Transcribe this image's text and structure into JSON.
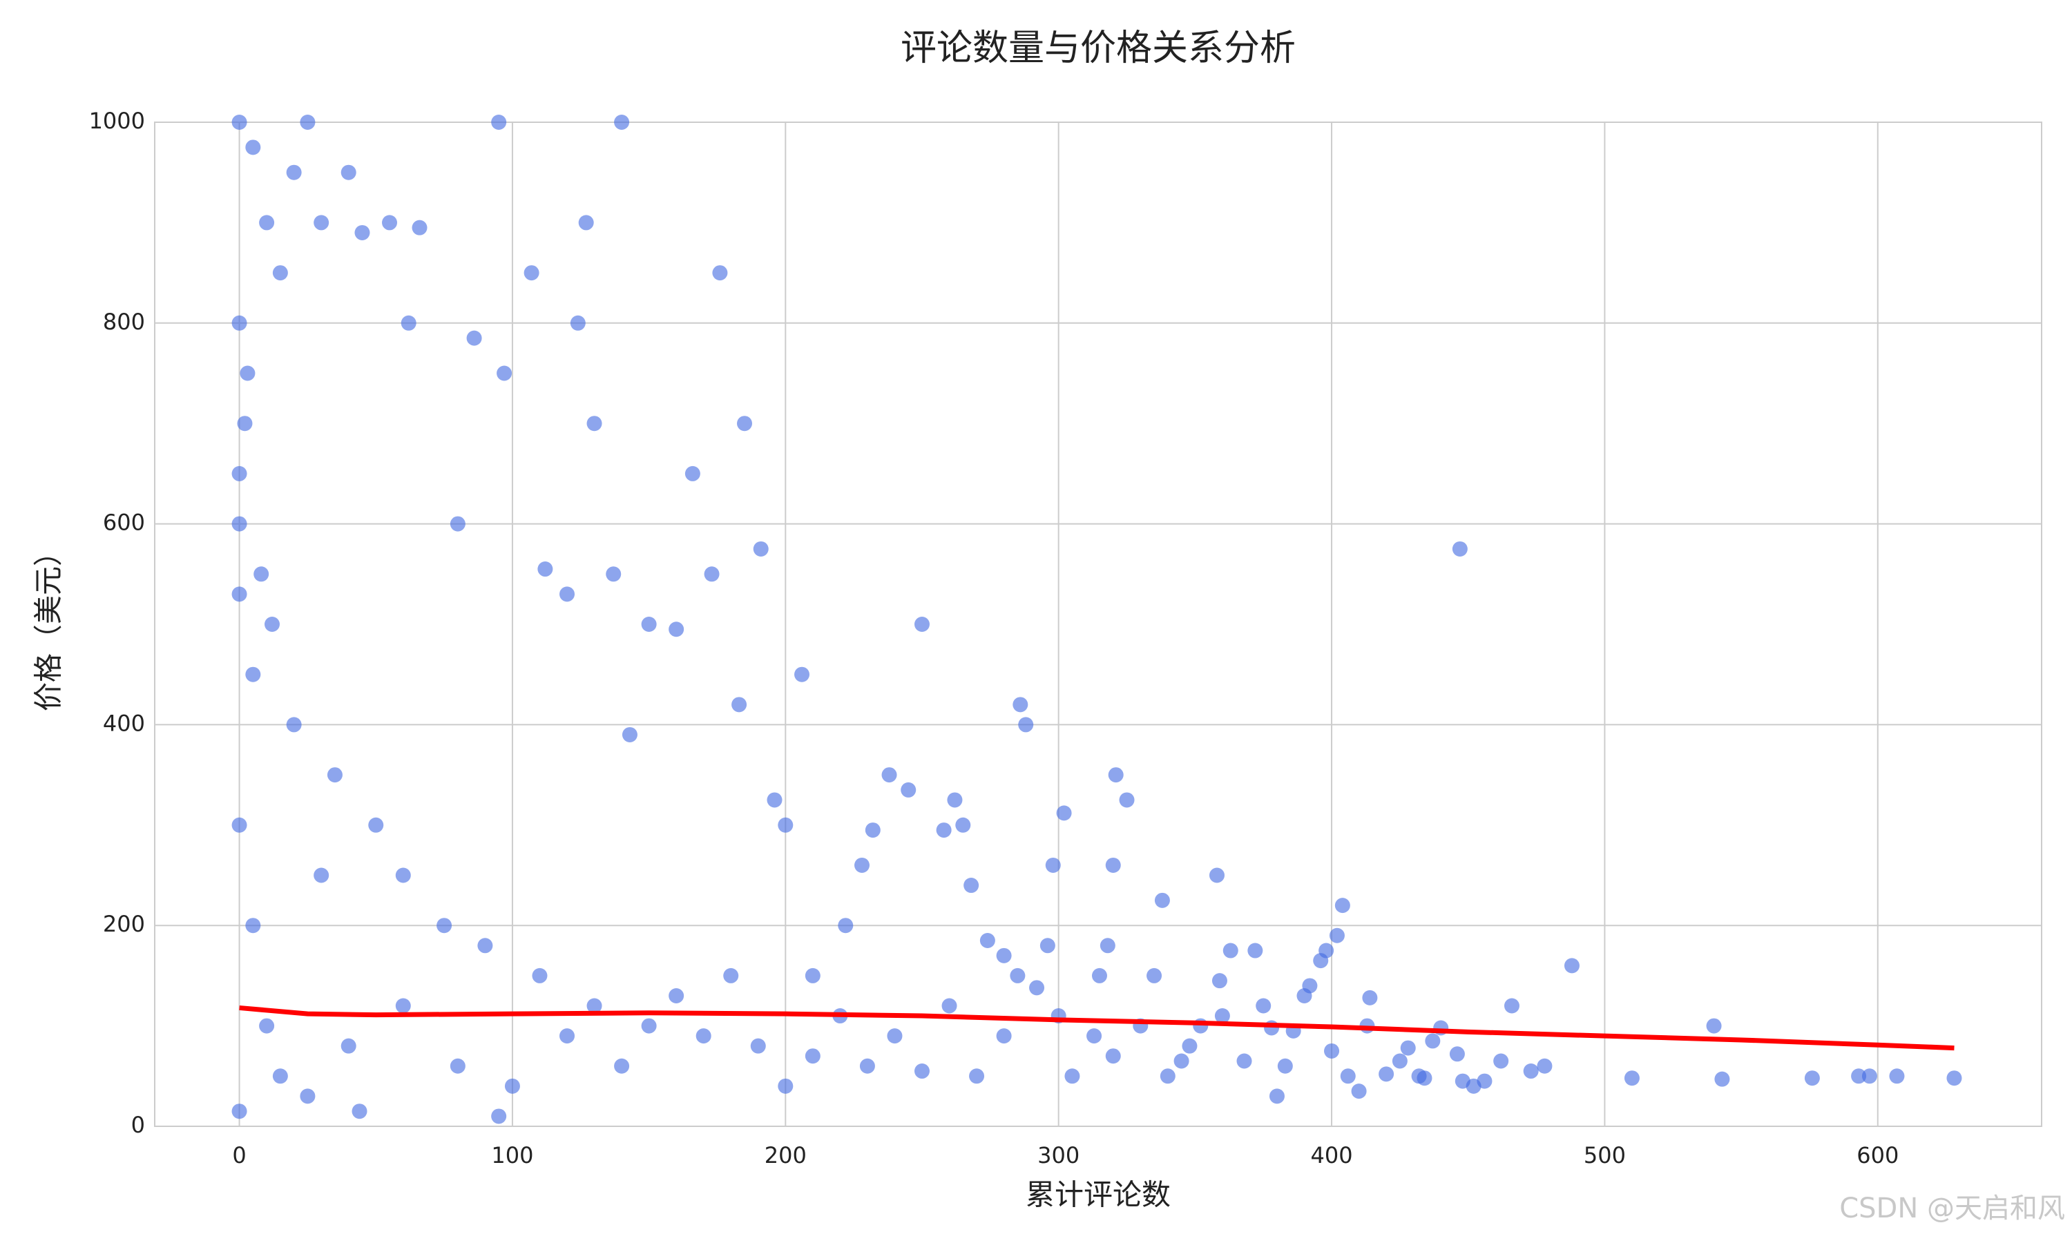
{
  "chart_data": {
    "type": "scatter",
    "title": "评论数量与价格关系分析",
    "x_label": "累计评论数",
    "y_label": "价格（美元）",
    "watermark": "CSDN @天启和风",
    "color": "#4169e1",
    "grid": true,
    "xlim": [
      -31,
      660
    ],
    "ylim": [
      0,
      1000
    ],
    "xticks": [
      0,
      100,
      200,
      300,
      400,
      500,
      600
    ],
    "yticks": [
      0,
      200,
      400,
      600,
      800,
      1000
    ],
    "x": [
      447,
      628,
      607,
      597,
      593,
      576,
      543,
      540,
      510,
      488,
      478,
      473,
      466,
      462,
      456,
      452,
      448,
      446,
      440,
      437,
      434,
      432,
      428,
      425,
      420,
      414,
      413,
      410,
      406,
      404,
      402,
      400,
      398,
      396,
      392,
      390,
      386,
      383,
      380,
      378,
      375,
      372,
      368,
      363,
      359,
      358,
      352,
      348,
      345,
      338,
      335,
      330,
      325,
      321,
      320,
      318,
      315,
      313,
      305,
      302,
      298,
      296,
      292,
      288,
      286,
      285,
      280,
      274,
      268,
      265,
      262,
      258,
      250,
      245,
      238,
      232,
      228,
      222,
      210,
      206,
      200,
      196,
      191,
      185,
      183,
      176,
      173,
      166,
      160,
      150,
      143,
      140,
      137,
      130,
      127,
      124,
      120,
      112,
      107,
      97,
      95,
      86,
      80,
      66,
      62,
      55,
      45,
      40,
      30,
      25,
      20,
      15,
      10,
      5,
      0,
      0,
      0,
      0,
      2,
      3,
      8,
      12,
      20,
      35,
      50,
      60,
      75,
      90,
      110,
      130,
      150,
      170,
      190,
      210,
      230,
      250,
      270,
      0,
      5,
      10,
      15,
      25,
      40,
      60,
      80,
      100,
      120,
      140,
      160,
      180,
      200,
      220,
      240,
      260,
      280,
      300,
      320,
      340,
      360,
      95,
      44,
      0,
      5,
      0,
      30
    ],
    "values": [
      575,
      48,
      50,
      50,
      50,
      48,
      47,
      100,
      48,
      160,
      60,
      55,
      120,
      65,
      45,
      40,
      45,
      72,
      98,
      85,
      48,
      50,
      78,
      65,
      52,
      128,
      100,
      35,
      50,
      220,
      190,
      75,
      175,
      165,
      140,
      130,
      95,
      60,
      30,
      98,
      120,
      175,
      65,
      175,
      145,
      250,
      100,
      80,
      65,
      225,
      150,
      100,
      325,
      350,
      260,
      180,
      150,
      90,
      50,
      312,
      260,
      180,
      138,
      400,
      420,
      150,
      170,
      185,
      240,
      300,
      325,
      295,
      500,
      335,
      350,
      295,
      260,
      200,
      150,
      450,
      300,
      325,
      575,
      700,
      420,
      850,
      550,
      650,
      495,
      500,
      390,
      1000,
      550,
      700,
      900,
      800,
      530,
      555,
      850,
      750,
      1000,
      785,
      600,
      895,
      800,
      900,
      890,
      950,
      900,
      1000,
      950,
      850,
      900,
      975,
      1000,
      800,
      650,
      600,
      700,
      750,
      550,
      500,
      400,
      350,
      300,
      250,
      200,
      180,
      150,
      120,
      100,
      90,
      80,
      70,
      60,
      55,
      50,
      300,
      200,
      100,
      50,
      30,
      80,
      120,
      60,
      40,
      90,
      60,
      130,
      150,
      40,
      110,
      90,
      120,
      90,
      110,
      70,
      50,
      110,
      10,
      15,
      15,
      450,
      530,
      250
    ],
    "trend": {
      "color": "#ff0000",
      "x": [
        0,
        25,
        50,
        100,
        150,
        200,
        250,
        300,
        350,
        400,
        450,
        500,
        550,
        600,
        628
      ],
      "values": [
        118,
        112,
        111,
        112,
        113,
        112,
        110,
        106,
        103,
        99,
        94,
        90,
        86,
        81,
        78
      ]
    }
  }
}
